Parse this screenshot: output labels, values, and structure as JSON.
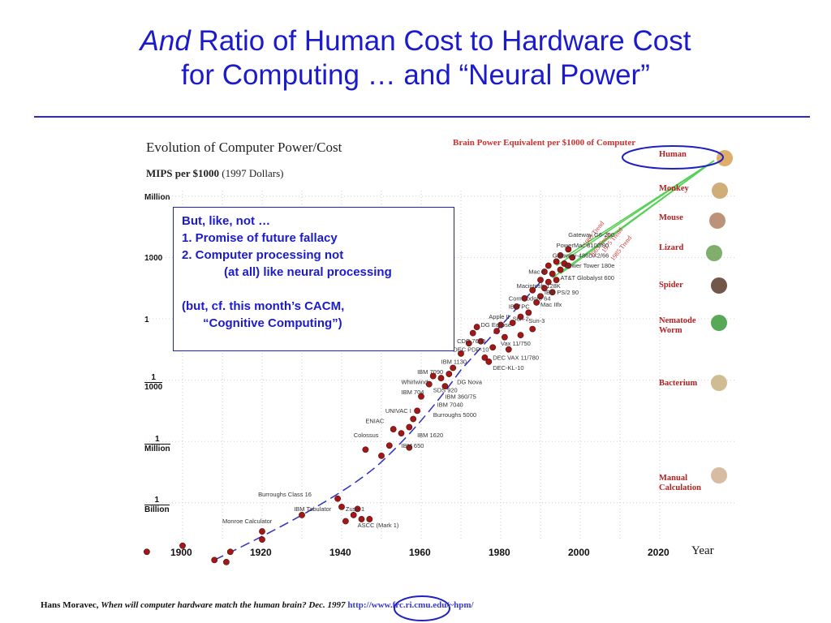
{
  "slide": {
    "title_em": "And",
    "title_rest": " Ratio of Human Cost to Hardware Cost",
    "title_line2": "for Computing … and “Neural Power”"
  },
  "callout": {
    "line1": "But, like, not …",
    "line2": "1. Promise of future fallacy",
    "line3": "2. Computer processing not",
    "line4": "(at all) like neural processing",
    "line5": "(but, cf. this month’s CACM,",
    "line6": "“Cognitive Computing”)"
  },
  "citation": {
    "author": "Hans Moravec,",
    "title": "When will computer hardware match the human brain? Dec. 1997",
    "url": "http://www.frc.ri.cmu.edu/~hpm/"
  },
  "chart_data": {
    "type": "scatter",
    "title": "Evolution of Computer Power/Cost",
    "ylabel": "MIPS per $1000",
    "ylabel_note": "(1997 Dollars)",
    "right_title": "Brain Power Equivalent per $1000 of Computer",
    "xlabel": "Year",
    "scale": "log",
    "xlim": [
      1900,
      2030
    ],
    "x_ticks": [
      1900,
      1920,
      1940,
      1960,
      1980,
      2000,
      2020
    ],
    "y_ticks": [
      {
        "label_num": "Million",
        "label_den": "",
        "exp": 6
      },
      {
        "label_num": "1000",
        "label_den": "",
        "exp": 3
      },
      {
        "label_num": "1",
        "label_den": "",
        "exp": 0
      },
      {
        "label_num": "1",
        "label_den": "1000",
        "exp": -3
      },
      {
        "label_num": "1",
        "label_den": "Million",
        "exp": -6
      },
      {
        "label_num": "1",
        "label_den": "Billion",
        "exp": -9
      }
    ],
    "brain_equivalents": [
      {
        "name": "Human",
        "exp": 8
      },
      {
        "name": "Monkey",
        "exp": 6.5
      },
      {
        "name": "Mouse",
        "exp": 5
      },
      {
        "name": "Lizard",
        "exp": 3.5
      },
      {
        "name": "Spider",
        "exp": 2.0
      },
      {
        "name": "Nematode\nWorm",
        "exp": 0.3
      },
      {
        "name": "Bacterium",
        "exp": -3.2
      },
      {
        "name": "Manual\nCalculation",
        "exp": -8.2
      }
    ],
    "trend_lines": [
      "1985 Trend",
      "1965 Trend",
      "1975 Trend",
      "1985 Trend"
    ],
    "labeled_machines": [
      {
        "name": "Burroughs Class 16",
        "year": 1919,
        "exp": -8.7
      },
      {
        "name": "IBM Tabulator",
        "year": 1928,
        "exp": -9.4
      },
      {
        "name": "Monroe Calculator",
        "year": 1910,
        "exp": -10.0
      },
      {
        "name": "Zuse-1",
        "year": 1941,
        "exp": -9.4
      },
      {
        "name": "ASCC (Mark 1)",
        "year": 1944,
        "exp": -10.2
      },
      {
        "name": "Colossus",
        "year": 1943,
        "exp": -5.8
      },
      {
        "name": "ENIAC",
        "year": 1946,
        "exp": -5.1
      },
      {
        "name": "UNIVAC I",
        "year": 1951,
        "exp": -4.6
      },
      {
        "name": "IBM 704",
        "year": 1955,
        "exp": -3.7
      },
      {
        "name": "Whirlwind",
        "year": 1955,
        "exp": -3.2
      },
      {
        "name": "IBM 7090",
        "year": 1959,
        "exp": -2.7
      },
      {
        "name": "IBM 1130",
        "year": 1965,
        "exp": -2.2
      },
      {
        "name": "DEC PDP-10",
        "year": 1968,
        "exp": -1.6
      },
      {
        "name": "CDC 7600",
        "year": 1969,
        "exp": -1.2
      },
      {
        "name": "DG Eclipse",
        "year": 1975,
        "exp": -0.4
      },
      {
        "name": "Apple II",
        "year": 1977,
        "exp": 0.0
      },
      {
        "name": "IBM PC",
        "year": 1982,
        "exp": 0.5
      },
      {
        "name": "Sun-2",
        "year": 1983,
        "exp": -0.1
      },
      {
        "name": "Commodore 64",
        "year": 1982,
        "exp": 0.9
      },
      {
        "name": "Macintosh-128K",
        "year": 1984,
        "exp": 1.5
      },
      {
        "name": "Mac II",
        "year": 1987,
        "exp": 2.2
      },
      {
        "name": "Gateway-486DX2/66",
        "year": 1993,
        "exp": 3.0
      },
      {
        "name": "PowerMac 8100/80",
        "year": 1994,
        "exp": 3.5
      },
      {
        "name": "Gateway G6-200",
        "year": 1997,
        "exp": 4.0
      },
      {
        "name": "Power Tower 180e",
        "year": 1996,
        "exp": 2.5
      },
      {
        "name": "AT&T Globalyst 600",
        "year": 1995,
        "exp": 1.9
      },
      {
        "name": "IBM PS/2 90",
        "year": 1991,
        "exp": 1.2
      },
      {
        "name": "Mac IIfx",
        "year": 1990,
        "exp": 0.6
      },
      {
        "name": "Sun-3",
        "year": 1987,
        "exp": -0.2
      },
      {
        "name": "Vax 11/750",
        "year": 1980,
        "exp": -1.3
      },
      {
        "name": "DEC VAX 11/780",
        "year": 1978,
        "exp": -2.0
      },
      {
        "name": "DEC-KL-10",
        "year": 1978,
        "exp": -2.5
      },
      {
        "name": "DG Nova",
        "year": 1969,
        "exp": -3.2
      },
      {
        "name": "SDS 920",
        "year": 1963,
        "exp": -3.6
      },
      {
        "name": "IBM 360/75",
        "year": 1966,
        "exp": -3.9
      },
      {
        "name": "IBM 7040",
        "year": 1964,
        "exp": -4.3
      },
      {
        "name": "Burroughs 5000",
        "year": 1963,
        "exp": -4.8
      },
      {
        "name": "IBM 1620",
        "year": 1959,
        "exp": -5.8
      },
      {
        "name": "IBM 650",
        "year": 1955,
        "exp": -6.3
      }
    ],
    "points": [
      [
        1891,
        -11.4
      ],
      [
        1900,
        -11.1
      ],
      [
        1908,
        -11.8
      ],
      [
        1911,
        -11.9
      ],
      [
        1912,
        -11.4
      ],
      [
        1920,
        -10.4
      ],
      [
        1920,
        -10.8
      ],
      [
        1930,
        -9.6
      ],
      [
        1939,
        -8.8
      ],
      [
        1940,
        -9.2
      ],
      [
        1941,
        -9.9
      ],
      [
        1943,
        -9.6
      ],
      [
        1944,
        -9.3
      ],
      [
        1945,
        -9.8
      ],
      [
        1947,
        -9.8
      ],
      [
        1946,
        -6.4
      ],
      [
        1950,
        -6.7
      ],
      [
        1952,
        -6.2
      ],
      [
        1953,
        -5.4
      ],
      [
        1955,
        -5.6
      ],
      [
        1957,
        -6.3
      ],
      [
        1957,
        -5.3
      ],
      [
        1958,
        -4.9
      ],
      [
        1959,
        -4.5
      ],
      [
        1960,
        -3.8
      ],
      [
        1962,
        -3.2
      ],
      [
        1963,
        -2.8
      ],
      [
        1965,
        -2.9
      ],
      [
        1966,
        -3.3
      ],
      [
        1967,
        -2.7
      ],
      [
        1968,
        -2.4
      ],
      [
        1970,
        -1.7
      ],
      [
        1972,
        -1.2
      ],
      [
        1973,
        -0.7
      ],
      [
        1974,
        -0.4
      ],
      [
        1975,
        -1.1
      ],
      [
        1976,
        -1.9
      ],
      [
        1977,
        -2.1
      ],
      [
        1978,
        -1.4
      ],
      [
        1979,
        -0.6
      ],
      [
        1980,
        -0.3
      ],
      [
        1981,
        -0.9
      ],
      [
        1982,
        -1.5
      ],
      [
        1983,
        -0.2
      ],
      [
        1984,
        0.6
      ],
      [
        1985,
        0.1
      ],
      [
        1985,
        -0.8
      ],
      [
        1986,
        1.0
      ],
      [
        1987,
        0.3
      ],
      [
        1988,
        1.4
      ],
      [
        1988,
        -0.5
      ],
      [
        1989,
        0.8
      ],
      [
        1990,
        1.9
      ],
      [
        1990,
        1.1
      ],
      [
        1991,
        2.3
      ],
      [
        1991,
        1.5
      ],
      [
        1992,
        1.8
      ],
      [
        1992,
        2.6
      ],
      [
        1993,
        2.2
      ],
      [
        1993,
        1.3
      ],
      [
        1994,
        2.8
      ],
      [
        1994,
        1.9
      ],
      [
        1995,
        2.4
      ],
      [
        1995,
        3.1
      ],
      [
        1996,
        2.7
      ],
      [
        1997,
        3.4
      ],
      [
        1997,
        2.6
      ],
      [
        1998,
        3.0
      ]
    ]
  }
}
